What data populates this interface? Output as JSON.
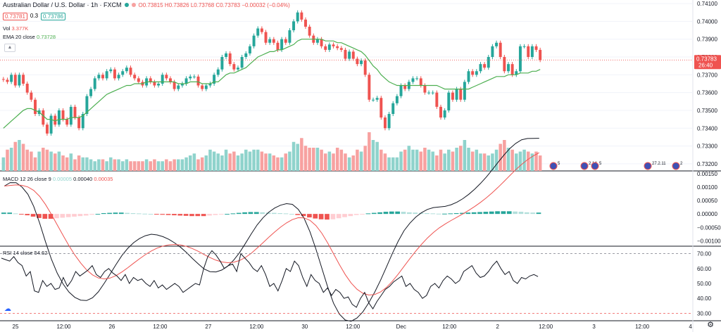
{
  "header": {
    "symbol": "Australian Dollar / U.S. Dollar · 1h · FXCM",
    "ohlc": "O0.73815 H0.73826 L0.73768 C0.73783 −0.00032 (−0.04%)",
    "sell_price": "0.73781",
    "spread": "0.3",
    "buy_price": "0.73786"
  },
  "indicators": {
    "vol_label": "Vol",
    "vol_value": "3.377K",
    "ema_label": "EMA 20 close",
    "ema_value": "0.73728",
    "macd_label": "MACD 12 26 close 9",
    "macd_hist": "0.00005",
    "macd_line": "0.00040",
    "macd_signal": "0.00035",
    "rsi_label": "RSI 14 close",
    "rsi_value": "54.62"
  },
  "price_axis": {
    "ticks": [
      "0.74100",
      "0.74000",
      "0.73900",
      "0.73800",
      "0.73700",
      "0.73600",
      "0.73500",
      "0.73400",
      "0.73300",
      "0.73200"
    ],
    "last_price": "0.73783",
    "countdown": "26:40"
  },
  "macd_axis": {
    "ticks": [
      "0.00150",
      "0.00100",
      "0.00050",
      "0.00000",
      "−0.00050",
      "−0.00100"
    ]
  },
  "rsi_axis": {
    "ticks": [
      "70.00",
      "60.00",
      "50.00",
      "40.00",
      "30.00"
    ]
  },
  "time_axis": {
    "labels": [
      "25",
      "12:00",
      "26",
      "12:00",
      "27",
      "12:00",
      "30",
      "12:00",
      "Dec",
      "12:00",
      "2",
      "12:00",
      "3",
      "12:00",
      "4"
    ]
  },
  "events": [
    "5",
    "2.14",
    "5",
    "27.2.11",
    "2"
  ],
  "colors": {
    "up": "#26a69a",
    "down": "#ef5350",
    "vol_up": "#8fd3cc",
    "vol_down": "#f7a1a0",
    "ema": "#4caf50",
    "macd": "#131722",
    "signal": "#ef5350"
  },
  "chart_data": [
    {
      "type": "candlestick",
      "title": "Australian Dollar / U.S. Dollar · 1h · FXCM",
      "ylim": [
        0.7316,
        0.7412
      ],
      "close": [
        0.73672,
        0.7366,
        0.737,
        0.7364,
        0.737,
        0.7365,
        0.736,
        0.7356,
        0.7348,
        0.735,
        0.7342,
        0.7337,
        0.7347,
        0.7342,
        0.735,
        0.7345,
        0.7342,
        0.7352,
        0.7346,
        0.734,
        0.7348,
        0.7358,
        0.7362,
        0.7368,
        0.737,
        0.7368,
        0.7372,
        0.7373,
        0.7368,
        0.737,
        0.7372,
        0.7374,
        0.737,
        0.7368,
        0.7366,
        0.7364,
        0.7368,
        0.7366,
        0.7364,
        0.7365,
        0.737,
        0.7368,
        0.7366,
        0.7362,
        0.7364,
        0.7365,
        0.7368,
        0.7369,
        0.7369,
        0.7364,
        0.7362,
        0.7364,
        0.7365,
        0.737,
        0.7373,
        0.738,
        0.7382,
        0.7376,
        0.7373,
        0.7374,
        0.738,
        0.7382,
        0.7386,
        0.7392,
        0.7396,
        0.7394,
        0.7388,
        0.739,
        0.7388,
        0.7384,
        0.739,
        0.7388,
        0.7395,
        0.74,
        0.7405,
        0.7401,
        0.7397,
        0.7392,
        0.7388,
        0.739,
        0.7386,
        0.7384,
        0.7387,
        0.7386,
        0.7385,
        0.7384,
        0.7379,
        0.7383,
        0.7379,
        0.7376,
        0.7378,
        0.737,
        0.7356,
        0.7356,
        0.7357,
        0.7346,
        0.734,
        0.7348,
        0.7354,
        0.7358,
        0.7364,
        0.7362,
        0.7366,
        0.7368,
        0.7368,
        0.7364,
        0.736,
        0.736,
        0.736,
        0.7352,
        0.7346,
        0.735,
        0.736,
        0.7356,
        0.7362,
        0.7356,
        0.7366,
        0.7372,
        0.737,
        0.7372,
        0.7376,
        0.7374,
        0.738,
        0.7386,
        0.7388,
        0.738,
        0.7372,
        0.7376,
        0.737,
        0.7372,
        0.7386,
        0.7386,
        0.738,
        0.7386,
        0.7384,
        0.73783
      ]
    },
    {
      "type": "bar",
      "title": "Vol",
      "values": [
        0.35,
        0.55,
        0.6,
        0.75,
        0.8,
        0.7,
        0.55,
        0.5,
        0.35,
        0.5,
        0.6,
        0.55,
        0.5,
        0.45,
        0.5,
        0.4,
        0.35,
        0.45,
        0.3,
        0.4,
        0.35,
        0.35,
        0.3,
        0.25,
        0.3,
        0.3,
        0.25,
        0.35,
        0.3,
        0.3,
        0.25,
        0.3,
        0.25,
        0.25,
        0.25,
        0.25,
        0.3,
        0.25,
        0.3,
        0.25,
        0.25,
        0.3,
        0.25,
        0.3,
        0.3,
        0.3,
        0.35,
        0.4,
        0.45,
        0.3,
        0.35,
        0.4,
        0.55,
        0.5,
        0.45,
        0.4,
        0.55,
        0.45,
        0.5,
        0.4,
        0.45,
        0.55,
        0.5,
        0.55,
        0.55,
        0.5,
        0.45,
        0.45,
        0.4,
        0.35,
        0.35,
        0.45,
        0.5,
        0.75,
        0.7,
        0.85,
        0.65,
        0.6,
        0.6,
        0.6,
        0.55,
        0.45,
        0.5,
        0.45,
        0.6,
        0.55,
        0.45,
        0.35,
        0.4,
        0.55,
        0.5,
        0.65,
        1.0,
        0.8,
        0.75,
        0.55,
        0.45,
        0.35,
        0.35,
        0.35,
        0.5,
        0.55,
        0.65,
        0.55,
        0.55,
        0.5,
        0.6,
        0.55,
        0.5,
        0.4,
        0.55,
        0.45,
        0.55,
        0.5,
        0.6,
        0.65,
        0.8,
        0.6,
        0.5,
        0.55,
        0.45,
        0.45,
        0.4,
        0.45,
        0.55,
        0.7,
        0.8,
        0.6,
        0.55,
        0.45,
        0.5,
        0.55,
        0.5,
        0.45,
        0.5,
        0.4,
        0.35
      ]
    },
    {
      "type": "line",
      "title": "EMA 20 close",
      "values": [
        0.734,
        0.7342,
        0.7344,
        0.7346,
        0.7348,
        0.735,
        0.7351,
        0.7351,
        0.735,
        0.7349,
        0.7347,
        0.7345,
        0.7345,
        0.7344,
        0.7345,
        0.7345,
        0.7345,
        0.7346,
        0.7346,
        0.7346,
        0.7347,
        0.7349,
        0.7351,
        0.7353,
        0.7355,
        0.7357,
        0.7359,
        0.736,
        0.7361,
        0.7362,
        0.7363,
        0.7364,
        0.7364,
        0.7365,
        0.7365,
        0.7365,
        0.7366,
        0.7366,
        0.7366,
        0.7366,
        0.7366,
        0.7366,
        0.7366,
        0.7366,
        0.7365,
        0.7365,
        0.7365,
        0.7366,
        0.7366,
        0.7366,
        0.7365,
        0.7365,
        0.7365,
        0.7366,
        0.7366,
        0.7368,
        0.737,
        0.7371,
        0.7371,
        0.7372,
        0.7373,
        0.7374,
        0.7376,
        0.7378,
        0.738,
        0.7381,
        0.7382,
        0.7383,
        0.7383,
        0.7384,
        0.7384,
        0.7385,
        0.7386,
        0.7387,
        0.7389,
        0.739,
        0.739,
        0.739,
        0.739,
        0.739,
        0.739,
        0.7389,
        0.7389,
        0.7389,
        0.7388,
        0.7388,
        0.7387,
        0.7386,
        0.7385,
        0.7384,
        0.7383,
        0.7381,
        0.7378,
        0.7375,
        0.7373,
        0.737,
        0.7368,
        0.7366,
        0.7365,
        0.7364,
        0.7364,
        0.7364,
        0.7364,
        0.7364,
        0.7364,
        0.7364,
        0.7364,
        0.7364,
        0.7364,
        0.7364,
        0.7363,
        0.7362,
        0.7362,
        0.7362,
        0.7362,
        0.7362,
        0.7362,
        0.7362,
        0.7363,
        0.7364,
        0.7365,
        0.7366,
        0.7367,
        0.7368,
        0.7369,
        0.7369,
        0.7369,
        0.737,
        0.737,
        0.737,
        0.7371,
        0.7371,
        0.7371,
        0.7372,
        0.7372,
        0.7373
      ]
    },
    {
      "type": "line",
      "title": "RSI 14 close",
      "ylim": [
        25,
        75
      ],
      "values": [
        67,
        66,
        65,
        68,
        64,
        62,
        55,
        58,
        45,
        44,
        52,
        48,
        50,
        46,
        47,
        54,
        48,
        52,
        58,
        55,
        57,
        59,
        62,
        56,
        54,
        58,
        60,
        57,
        55,
        52,
        56,
        50,
        54,
        52,
        53,
        50,
        48,
        52,
        47,
        49,
        46,
        48,
        50,
        48,
        44,
        46,
        48,
        50,
        49,
        60,
        68,
        72,
        69,
        65,
        60,
        62,
        63,
        58,
        70,
        67,
        64,
        60,
        58,
        62,
        56,
        48,
        50,
        45,
        52,
        60,
        58,
        65,
        62,
        54,
        48,
        56,
        52,
        50,
        44,
        47,
        42,
        46,
        44,
        40,
        41,
        36,
        34,
        40,
        44,
        37,
        33,
        38,
        42,
        46,
        48,
        51,
        53,
        55,
        48,
        50,
        46,
        44,
        40,
        42,
        48,
        50,
        47,
        52,
        55,
        53,
        50,
        52,
        58,
        60,
        62,
        57,
        54,
        55,
        58,
        62,
        65,
        60,
        56,
        58,
        52,
        50,
        54,
        53,
        55,
        56,
        54.62
      ]
    },
    {
      "type": "bar",
      "title": "MACD 12 26 close 9",
      "ylim": [
        -0.0012,
        0.0016
      ],
      "values": [
        5e-05,
        5e-05,
        2e-05,
        -2e-05,
        -5e-05,
        -0.0001,
        -0.00015,
        -0.00018,
        -0.00018,
        -0.00016,
        -0.00014,
        -0.00012,
        -0.0001,
        -8e-05,
        -6e-05,
        -3e-05,
        0.0,
        3e-05,
        4e-05,
        5e-05,
        5e-05,
        4e-05,
        3e-05,
        2e-05,
        1e-05,
        0.0,
        -2e-05,
        -3e-05,
        -4e-05,
        -5e-05,
        -6e-05,
        -7e-05,
        -8e-05,
        -8e-05,
        -8e-05,
        -6e-05,
        -4e-05,
        -2e-05,
        0.0,
        2e-05,
        4e-05,
        6e-05,
        7e-05,
        7e-05,
        6e-05,
        5e-05,
        4e-05,
        3e-05,
        2e-05,
        0.0,
        -4e-05,
        -8e-05,
        -0.00013,
        -0.00017,
        -0.0002,
        -0.00021,
        -0.0002,
        -0.00016,
        -0.00012,
        -8e-05,
        -4e-05,
        -1e-05,
        2e-05,
        4e-05,
        6e-05,
        8e-05,
        9e-05,
        9e-05,
        8e-05,
        6e-05,
        5e-05,
        4e-05,
        3e-05,
        2e-05,
        1e-05,
        1e-05,
        2e-05,
        3e-05,
        4e-05,
        5e-05,
        6e-05,
        7e-05,
        8e-05,
        9e-05,
        0.0001,
        0.0001,
        0.0001,
        9e-05,
        8e-05,
        6e-05,
        5e-05,
        5e-05
      ]
    }
  ]
}
